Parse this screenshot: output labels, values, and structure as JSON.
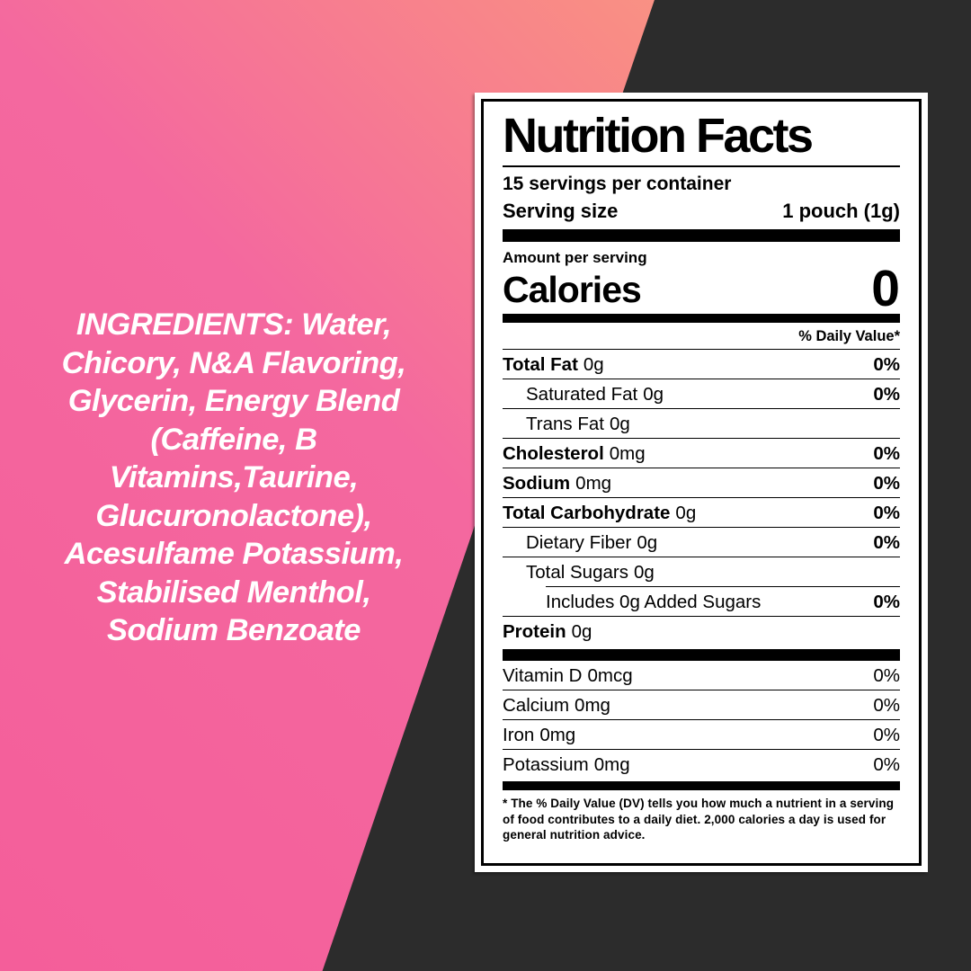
{
  "background": {
    "dark_color": "#2c2c2c",
    "pink_gradient_start": "#f45e9a",
    "pink_gradient_end": "#faa183"
  },
  "ingredients": {
    "text": "INGREDIENTS: Water,\nChicory, N&A Flavoring,\nGlycerin, Energy Blend\n(Caffeine, B\nVitamins,Taurine,\nGlucuronolactone),\nAcesulfame Potassium,\nStabilised Menthol,\nSodium Benzoate"
  },
  "label": {
    "title": "Nutrition Facts",
    "servings_per_container": "15 servings per container",
    "serving_size_label": "Serving size",
    "serving_size_value": "1 pouch (1g)",
    "amount_per_serving": "Amount per serving",
    "calories_label": "Calories",
    "calories_value": "0",
    "daily_value_header": "% Daily Value*",
    "nutrients": [
      {
        "name": "Total Fat",
        "amount": "0g",
        "dv": "0%"
      },
      {
        "name": "Saturated Fat",
        "amount": "0g",
        "dv": "0%"
      },
      {
        "name": "Trans Fat",
        "amount": "0g",
        "dv": ""
      },
      {
        "name": "Cholesterol",
        "amount": "0mg",
        "dv": "0%"
      },
      {
        "name": "Sodium",
        "amount": "0mg",
        "dv": "0%"
      },
      {
        "name": "Total Carbohydrate",
        "amount": "0g",
        "dv": "0%"
      },
      {
        "name": "Dietary Fiber",
        "amount": "0g",
        "dv": "0%"
      },
      {
        "name": "Total Sugars",
        "amount": "0g",
        "dv": ""
      },
      {
        "name": "Includes 0g Added Sugars",
        "amount": "",
        "dv": "0%"
      },
      {
        "name": "Protein",
        "amount": "0g",
        "dv": ""
      }
    ],
    "micronutrients": [
      {
        "name": "Vitamin D",
        "amount": "0mcg",
        "dv": "0%"
      },
      {
        "name": "Calcium",
        "amount": "0mg",
        "dv": "0%"
      },
      {
        "name": "Iron",
        "amount": "0mg",
        "dv": "0%"
      },
      {
        "name": "Potassium",
        "amount": "0mg",
        "dv": "0%"
      }
    ],
    "footnote": "* The % Daily Value (DV) tells you how much a nutrient in a serving of food contributes to a daily diet. 2,000 calories a day is used for general nutrition advice."
  }
}
